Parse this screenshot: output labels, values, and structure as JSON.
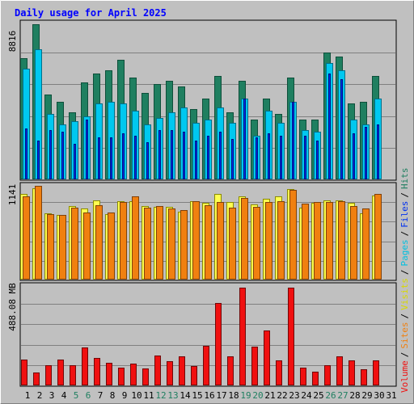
{
  "chart_data": [
    {
      "type": "bar",
      "title": "Daily usage for April 2025",
      "ylabel": "8816",
      "categories": [
        "1",
        "2",
        "3",
        "4",
        "5",
        "6",
        "7",
        "8",
        "9",
        "10",
        "11",
        "12",
        "13",
        "14",
        "15",
        "16",
        "17",
        "18",
        "19",
        "20",
        "21",
        "22",
        "23",
        "24",
        "25",
        "26",
        "27",
        "28",
        "29",
        "30",
        "31"
      ],
      "series": [
        {
          "name": "Hits",
          "values": [
            6900,
            8816,
            4800,
            4400,
            3800,
            5500,
            6000,
            6200,
            6800,
            5800,
            4900,
            5400,
            5600,
            5300,
            4000,
            4600,
            5900,
            3800,
            5600,
            3400,
            4600,
            3700,
            5800,
            3400,
            3400,
            7200,
            7000,
            4300,
            4400,
            5900,
            0
          ]
        },
        {
          "name": "Files",
          "values": [
            6300,
            7400,
            3700,
            3100,
            3300,
            3600,
            4300,
            4400,
            4300,
            3900,
            3100,
            3500,
            3800,
            4100,
            3200,
            3400,
            4100,
            3200,
            4600,
            2500,
            3900,
            3200,
            4400,
            2800,
            2700,
            6600,
            6200,
            3400,
            3100,
            4600,
            0
          ]
        }
      ],
      "pages": [
        2900,
        2200,
        2800,
        2700,
        2000,
        3400,
        2400,
        2400,
        2600,
        2500,
        2100,
        2800,
        2800,
        2700,
        2200,
        2500,
        2700,
        2300,
        4600,
        2400,
        2600,
        2500,
        4400,
        2500,
        2200,
        6000,
        5700,
        2600,
        3000,
        3100,
        0
      ],
      "colors": {
        "hits": "#1f7f60",
        "files": "#00c8f0",
        "pages": "#0030f0"
      }
    },
    {
      "type": "bar",
      "ylabel": "1141",
      "categories": [
        "1",
        "2",
        "3",
        "4",
        "5",
        "6",
        "7",
        "8",
        "9",
        "10",
        "11",
        "12",
        "13",
        "14",
        "15",
        "16",
        "17",
        "18",
        "19",
        "20",
        "21",
        "22",
        "23",
        "24",
        "25",
        "26",
        "27",
        "28",
        "29",
        "30",
        "31"
      ],
      "series": [
        {
          "name": "Visits",
          "values": [
            1041,
            1110,
            808,
            790,
            900,
            868,
            964,
            796,
            951,
            950,
            900,
            881,
            887,
            831,
            952,
            933,
            1041,
            943,
            1013,
            913,
            986,
            1018,
            1102,
            880,
            939,
            964,
            964,
            935,
            808,
            1023,
            0
          ]
        },
        {
          "name": "Sites",
          "values": [
            1013,
            1141,
            792,
            783,
            874,
            817,
            906,
            814,
            944,
            1014,
            874,
            894,
            861,
            841,
            950,
            903,
            944,
            880,
            989,
            888,
            948,
            951,
            1088,
            921,
            945,
            949,
            954,
            897,
            869,
            1041,
            0
          ]
        }
      ],
      "colors": {
        "visits": "#ffff50",
        "sites": "#f08010"
      }
    },
    {
      "type": "bar",
      "ylabel": "488.08 MB",
      "categories": [
        "1",
        "2",
        "3",
        "4",
        "5",
        "6",
        "7",
        "8",
        "9",
        "10",
        "11",
        "12",
        "13",
        "14",
        "15",
        "16",
        "17",
        "18",
        "19",
        "20",
        "21",
        "22",
        "23",
        "24",
        "25",
        "26",
        "27",
        "28",
        "29",
        "30",
        "31"
      ],
      "series": [
        {
          "name": "Volume",
          "values": [
            128,
            65,
            102,
            130,
            102,
            190,
            139,
            113,
            91,
            109,
            87,
            150,
            120,
            145,
            96,
            198,
            413,
            145,
            488,
            193,
            274,
            127,
            490,
            91,
            68,
            101,
            145,
            127,
            83,
            125,
            0
          ]
        }
      ],
      "colors": {
        "volume": "#f01010"
      }
    }
  ],
  "legend": {
    "volume": "Volume",
    "sites": "Sites",
    "visits": "Visits",
    "pages": "Pages",
    "files": "Files",
    "hits": "Hits",
    "sep": "/"
  }
}
